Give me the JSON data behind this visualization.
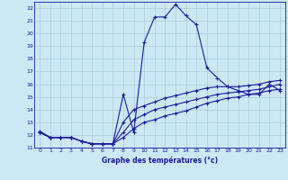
{
  "xlabel": "Graphe des températures (°c)",
  "bg_color": "#cce8f4",
  "line_color": "#1a1a9a",
  "grid_color": "#aaccd8",
  "xlim": [
    -0.5,
    23.5
  ],
  "ylim": [
    11,
    22.5
  ],
  "yticks": [
    11,
    12,
    13,
    14,
    15,
    16,
    17,
    18,
    19,
    20,
    21,
    22
  ],
  "xticks": [
    0,
    1,
    2,
    3,
    4,
    5,
    6,
    7,
    8,
    9,
    10,
    11,
    12,
    13,
    14,
    15,
    16,
    17,
    18,
    19,
    20,
    21,
    22,
    23
  ],
  "line1_x": [
    0,
    1,
    2,
    3,
    4,
    5,
    6,
    7,
    8,
    9,
    10,
    11,
    12,
    13,
    14,
    15,
    16,
    17,
    18,
    19,
    20,
    21,
    22,
    23
  ],
  "line1_y": [
    12.3,
    11.8,
    11.8,
    11.8,
    11.5,
    11.3,
    11.3,
    11.3,
    15.2,
    12.2,
    19.3,
    21.3,
    21.3,
    22.3,
    21.4,
    20.7,
    17.3,
    16.5,
    15.8,
    15.5,
    15.2,
    15.2,
    16.0,
    15.5
  ],
  "line2_x": [
    0,
    1,
    2,
    3,
    4,
    5,
    6,
    7,
    8,
    9,
    10,
    11,
    12,
    13,
    14,
    15,
    16,
    17,
    18,
    19,
    20,
    21,
    22,
    23
  ],
  "line2_y": [
    12.2,
    11.8,
    11.8,
    11.8,
    11.5,
    11.3,
    11.3,
    11.3,
    11.8,
    12.5,
    13.0,
    13.2,
    13.5,
    13.7,
    13.9,
    14.2,
    14.5,
    14.7,
    14.9,
    15.0,
    15.2,
    15.3,
    15.5,
    15.6
  ],
  "line3_x": [
    0,
    1,
    2,
    3,
    4,
    5,
    6,
    7,
    8,
    9,
    10,
    11,
    12,
    13,
    14,
    15,
    16,
    17,
    18,
    19,
    20,
    21,
    22,
    23
  ],
  "line3_y": [
    12.2,
    11.8,
    11.8,
    11.8,
    11.5,
    11.3,
    11.3,
    11.3,
    12.2,
    13.2,
    13.6,
    14.0,
    14.2,
    14.4,
    14.6,
    14.8,
    15.0,
    15.2,
    15.3,
    15.4,
    15.5,
    15.6,
    15.8,
    16.0
  ],
  "line4_x": [
    0,
    1,
    2,
    3,
    4,
    5,
    6,
    7,
    8,
    9,
    10,
    11,
    12,
    13,
    14,
    15,
    16,
    17,
    18,
    19,
    20,
    21,
    22,
    23
  ],
  "line4_y": [
    12.2,
    11.8,
    11.8,
    11.8,
    11.5,
    11.3,
    11.3,
    11.3,
    13.0,
    14.0,
    14.3,
    14.6,
    14.9,
    15.1,
    15.3,
    15.5,
    15.7,
    15.8,
    15.8,
    15.8,
    15.9,
    16.0,
    16.2,
    16.3
  ]
}
